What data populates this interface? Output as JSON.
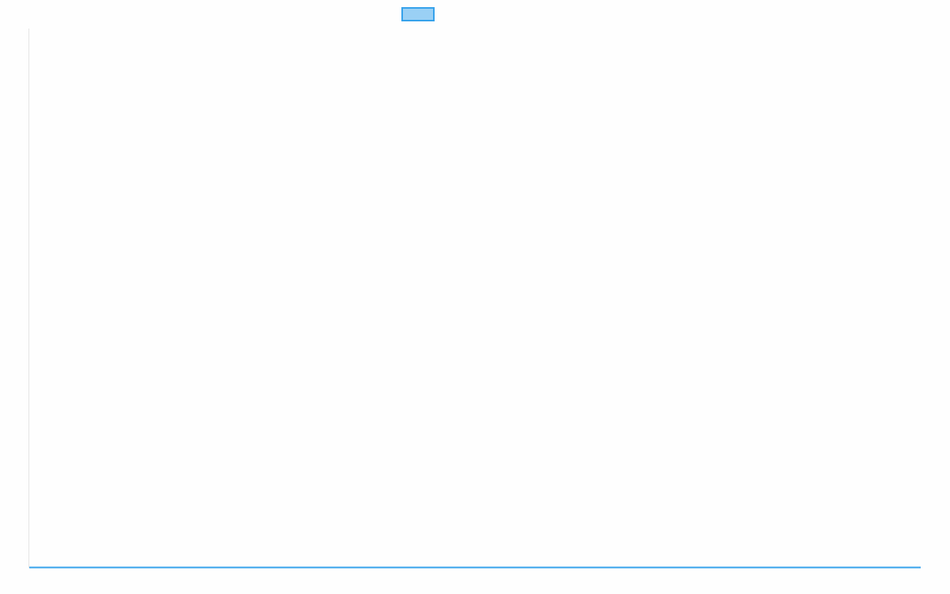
{
  "chart_data": {
    "type": "line",
    "title": "",
    "xlabel": "",
    "ylabel": "",
    "categories": [],
    "series": [
      {
        "values": [],
        "color": "#36a2eb",
        "fill": "#9ad0f5"
      }
    ],
    "legend": "top",
    "grid": false
  }
}
